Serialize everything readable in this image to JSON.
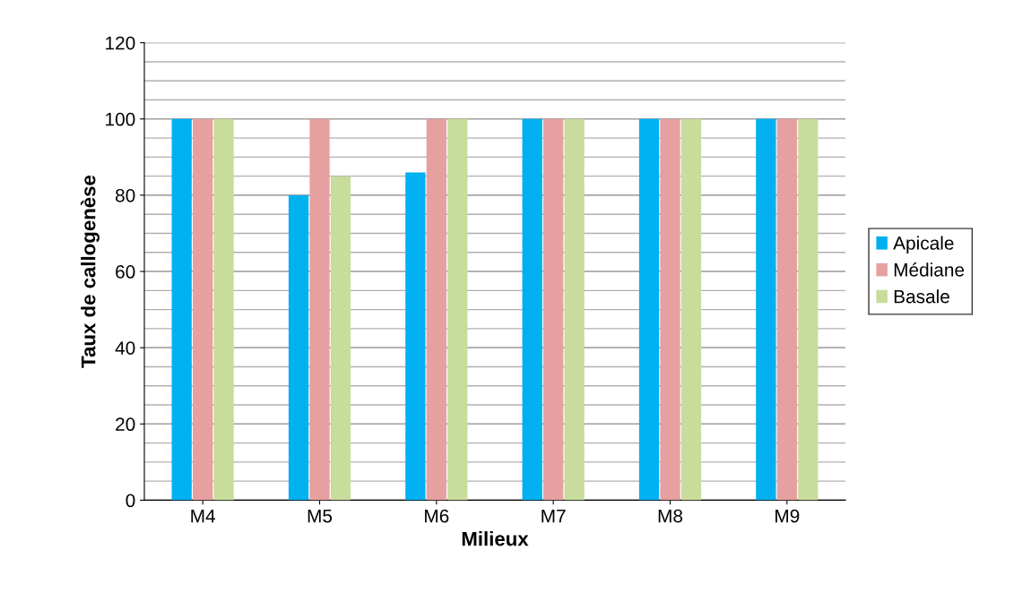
{
  "chart_data": {
    "type": "bar",
    "xlabel": "Milieux",
    "ylabel": "Taux de callogenèse",
    "categories": [
      "M4",
      "M5",
      "M6",
      "M7",
      "M8",
      "M9"
    ],
    "series": [
      {
        "name": "Apicale",
        "color": "#00b0f0",
        "values": [
          100,
          80,
          86,
          100,
          100,
          100
        ]
      },
      {
        "name": "Médiane",
        "color": "#e6a0a0",
        "values": [
          100,
          100,
          100,
          100,
          100,
          100
        ]
      },
      {
        "name": "Basale",
        "color": "#c8dc9c",
        "values": [
          100,
          85,
          100,
          100,
          100,
          100
        ]
      }
    ],
    "ylim": [
      0,
      120
    ],
    "yticks": [
      0,
      20,
      40,
      60,
      80,
      100,
      120
    ],
    "grid": "y",
    "legend": "right"
  }
}
